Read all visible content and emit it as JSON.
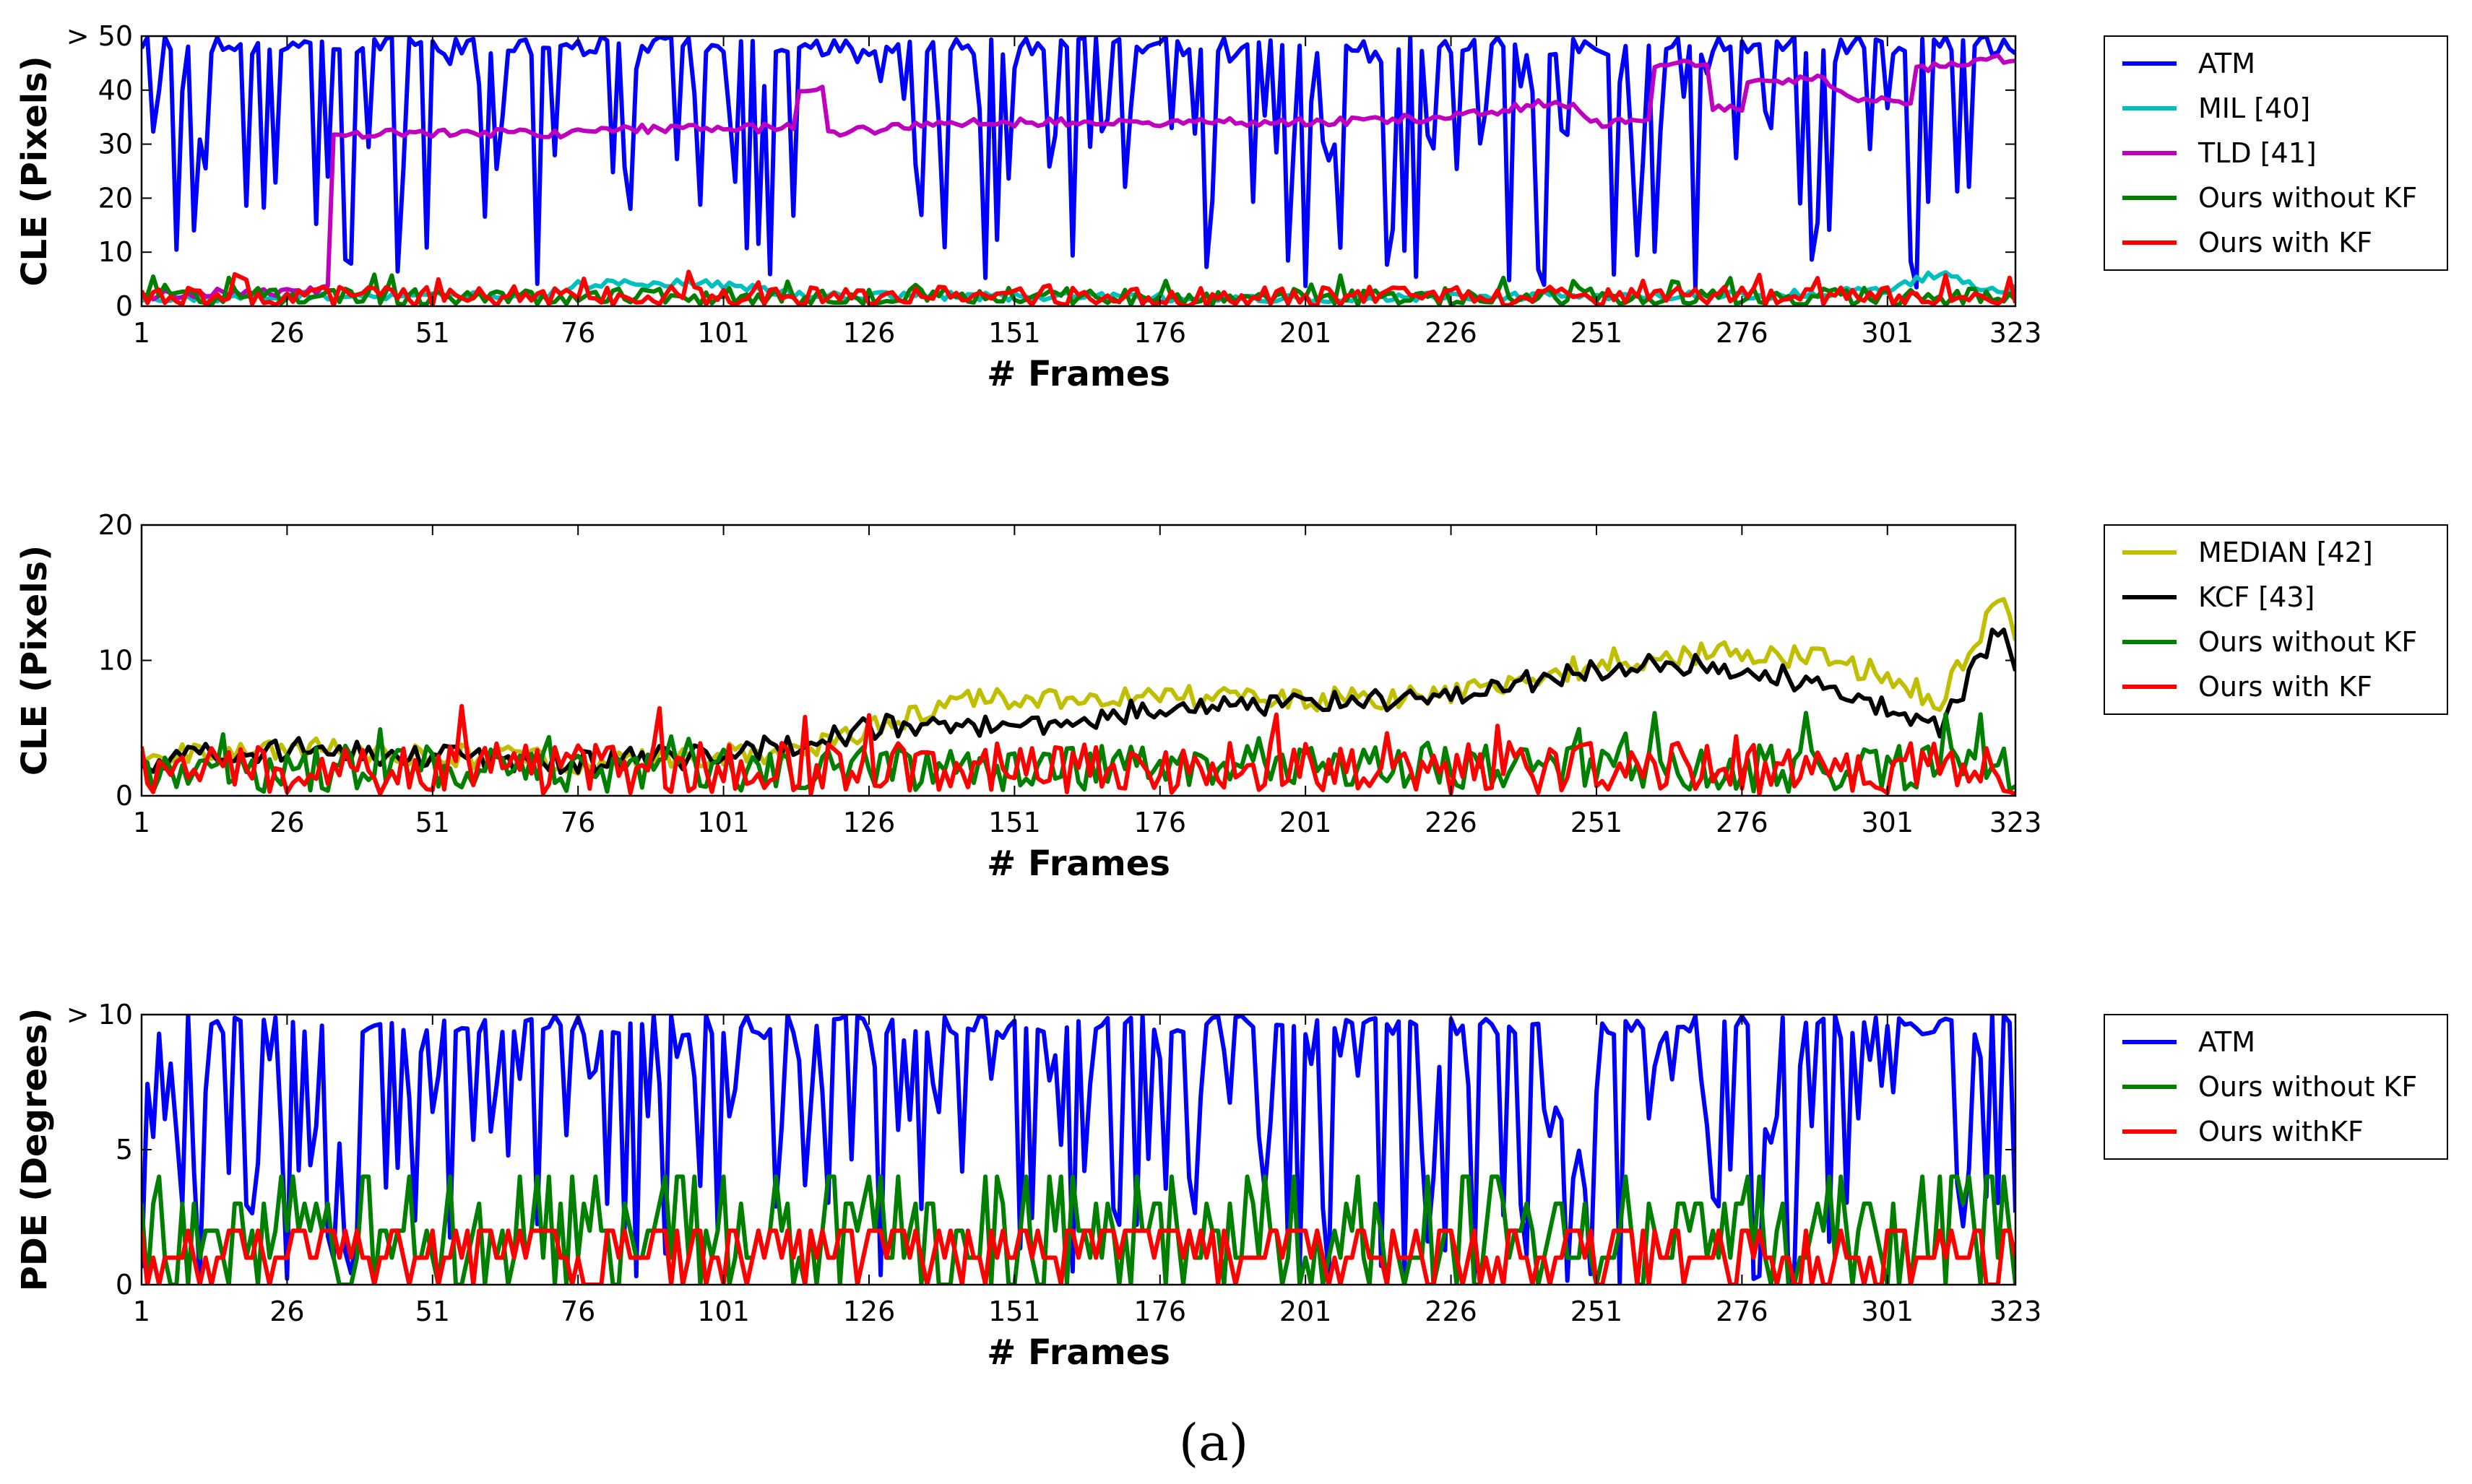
{
  "chart_data": [
    {
      "type": "line",
      "ylabel": "CLE (Pixels)",
      "xlabel": "# Frames",
      "xlim": [
        1,
        323
      ],
      "ylim": [
        0,
        50
      ],
      "xticks": [
        1,
        26,
        51,
        76,
        101,
        126,
        151,
        176,
        201,
        226,
        251,
        276,
        301,
        323
      ],
      "yticks": [
        0,
        10,
        20,
        30,
        40,
        50
      ],
      "ytick_labels": [
        "0",
        "10",
        "20",
        "30",
        "40",
        "> 50"
      ],
      "legend_position": "outside-right",
      "series": [
        {
          "name": "ATM",
          "color": "#0000ff",
          "kind": "spiky",
          "base": 38,
          "low": 2,
          "high": 50,
          "spike_rate": 0.42,
          "seed": 11
        },
        {
          "name": "MIL [40]",
          "color": "#00bfbf",
          "kind": "anchors",
          "noise": 0.8,
          "seed": 12,
          "anchors": [
            [
              1,
              1.5
            ],
            [
              35,
              2
            ],
            [
              70,
              2
            ],
            [
              76,
              4
            ],
            [
              90,
              4.5
            ],
            [
              101,
              4
            ],
            [
              115,
              2
            ],
            [
              200,
              1.5
            ],
            [
              250,
              2
            ],
            [
              280,
              2
            ],
            [
              300,
              3
            ],
            [
              310,
              6
            ],
            [
              318,
              3
            ],
            [
              323,
              3
            ]
          ]
        },
        {
          "name": "TLD [41]",
          "color": "#bf00bf",
          "kind": "anchors",
          "noise": 0.8,
          "seed": 13,
          "anchors": [
            [
              1,
              2
            ],
            [
              33,
              3
            ],
            [
              34,
              32
            ],
            [
              60,
              32
            ],
            [
              76,
              32
            ],
            [
              90,
              33
            ],
            [
              113,
              33
            ],
            [
              114,
              40
            ],
            [
              118,
              40
            ],
            [
              119,
              32
            ],
            [
              140,
              34
            ],
            [
              200,
              34
            ],
            [
              226,
              35
            ],
            [
              245,
              38
            ],
            [
              251,
              34
            ],
            [
              260,
              34
            ],
            [
              261,
              45
            ],
            [
              270,
              45
            ],
            [
              271,
              37
            ],
            [
              276,
              37
            ],
            [
              277,
              42
            ],
            [
              290,
              42
            ],
            [
              295,
              38
            ],
            [
              305,
              38
            ],
            [
              306,
              44
            ],
            [
              323,
              46
            ]
          ]
        },
        {
          "name": "Ours without KF",
          "color": "#008000",
          "kind": "noise",
          "base": 1.8,
          "amp": 1.6,
          "seed": 14
        },
        {
          "name": "Ours with KF",
          "color": "#ff0000",
          "kind": "noise",
          "base": 1.8,
          "amp": 1.8,
          "seed": 15
        }
      ]
    },
    {
      "type": "line",
      "ylabel": "CLE (Pixels)",
      "xlabel": "# Frames",
      "xlim": [
        1,
        323
      ],
      "ylim": [
        0,
        20
      ],
      "xticks": [
        1,
        26,
        51,
        76,
        101,
        126,
        151,
        176,
        201,
        226,
        251,
        276,
        301,
        323
      ],
      "yticks": [
        0,
        10,
        20
      ],
      "ytick_labels": [
        "0",
        "10",
        "20"
      ],
      "legend_position": "outside-right",
      "series": [
        {
          "name": "MEDIAN [42]",
          "color": "#bfbf00",
          "kind": "anchors",
          "noise": 0.9,
          "seed": 21,
          "anchors": [
            [
              1,
              3
            ],
            [
              26,
              3.5
            ],
            [
              51,
              3
            ],
            [
              76,
              2.5
            ],
            [
              101,
              3
            ],
            [
              115,
              3.5
            ],
            [
              126,
              5
            ],
            [
              140,
              7
            ],
            [
              151,
              7
            ],
            [
              176,
              7.5
            ],
            [
              201,
              7
            ],
            [
              226,
              7.5
            ],
            [
              245,
              9
            ],
            [
              251,
              10
            ],
            [
              276,
              10.5
            ],
            [
              290,
              10
            ],
            [
              301,
              9
            ],
            [
              310,
              7
            ],
            [
              318,
              13
            ],
            [
              321,
              15
            ],
            [
              323,
              11
            ]
          ]
        },
        {
          "name": "KCF [43]",
          "color": "#000000",
          "kind": "anchors",
          "noise": 0.9,
          "seed": 22,
          "anchors": [
            [
              1,
              2.5
            ],
            [
              26,
              3.5
            ],
            [
              51,
              3
            ],
            [
              76,
              2.5
            ],
            [
              101,
              3
            ],
            [
              115,
              4
            ],
            [
              126,
              5
            ],
            [
              140,
              5.5
            ],
            [
              151,
              5
            ],
            [
              176,
              6.5
            ],
            [
              201,
              7
            ],
            [
              226,
              7
            ],
            [
              245,
              9
            ],
            [
              251,
              9.5
            ],
            [
              276,
              9.5
            ],
            [
              290,
              8
            ],
            [
              301,
              6.5
            ],
            [
              310,
              5
            ],
            [
              318,
              11
            ],
            [
              321,
              13
            ],
            [
              323,
              10
            ]
          ]
        },
        {
          "name": "Ours without KF",
          "color": "#008000",
          "kind": "noise",
          "base": 2,
          "amp": 1.7,
          "seed": 23
        },
        {
          "name": "Ours with KF",
          "color": "#ff0000",
          "kind": "noise",
          "base": 2,
          "amp": 1.9,
          "seed": 24
        }
      ]
    },
    {
      "type": "line",
      "ylabel": "PDE (Degrees)",
      "xlabel": "# Frames",
      "xlim": [
        1,
        323
      ],
      "ylim": [
        0,
        10
      ],
      "xticks": [
        1,
        26,
        51,
        76,
        101,
        126,
        151,
        176,
        201,
        226,
        251,
        276,
        301,
        323
      ],
      "yticks": [
        0,
        5,
        10
      ],
      "ytick_labels": [
        "0",
        "5",
        "> 10"
      ],
      "legend_position": "outside-right",
      "series": [
        {
          "name": "ATM",
          "color": "#0000ff",
          "kind": "spiky",
          "base": 7.5,
          "low": 0,
          "high": 10,
          "spike_rate": 0.55,
          "seed": 31
        },
        {
          "name": "Ours without KF",
          "color": "#008000",
          "kind": "levels",
          "levels": [
            0,
            1,
            2,
            3,
            4
          ],
          "seed": 32
        },
        {
          "name": "Ours withKF",
          "color": "#ff0000",
          "kind": "levels",
          "levels": [
            0,
            1,
            1,
            2,
            2
          ],
          "seed": 33
        }
      ]
    }
  ],
  "caption": "(a)"
}
